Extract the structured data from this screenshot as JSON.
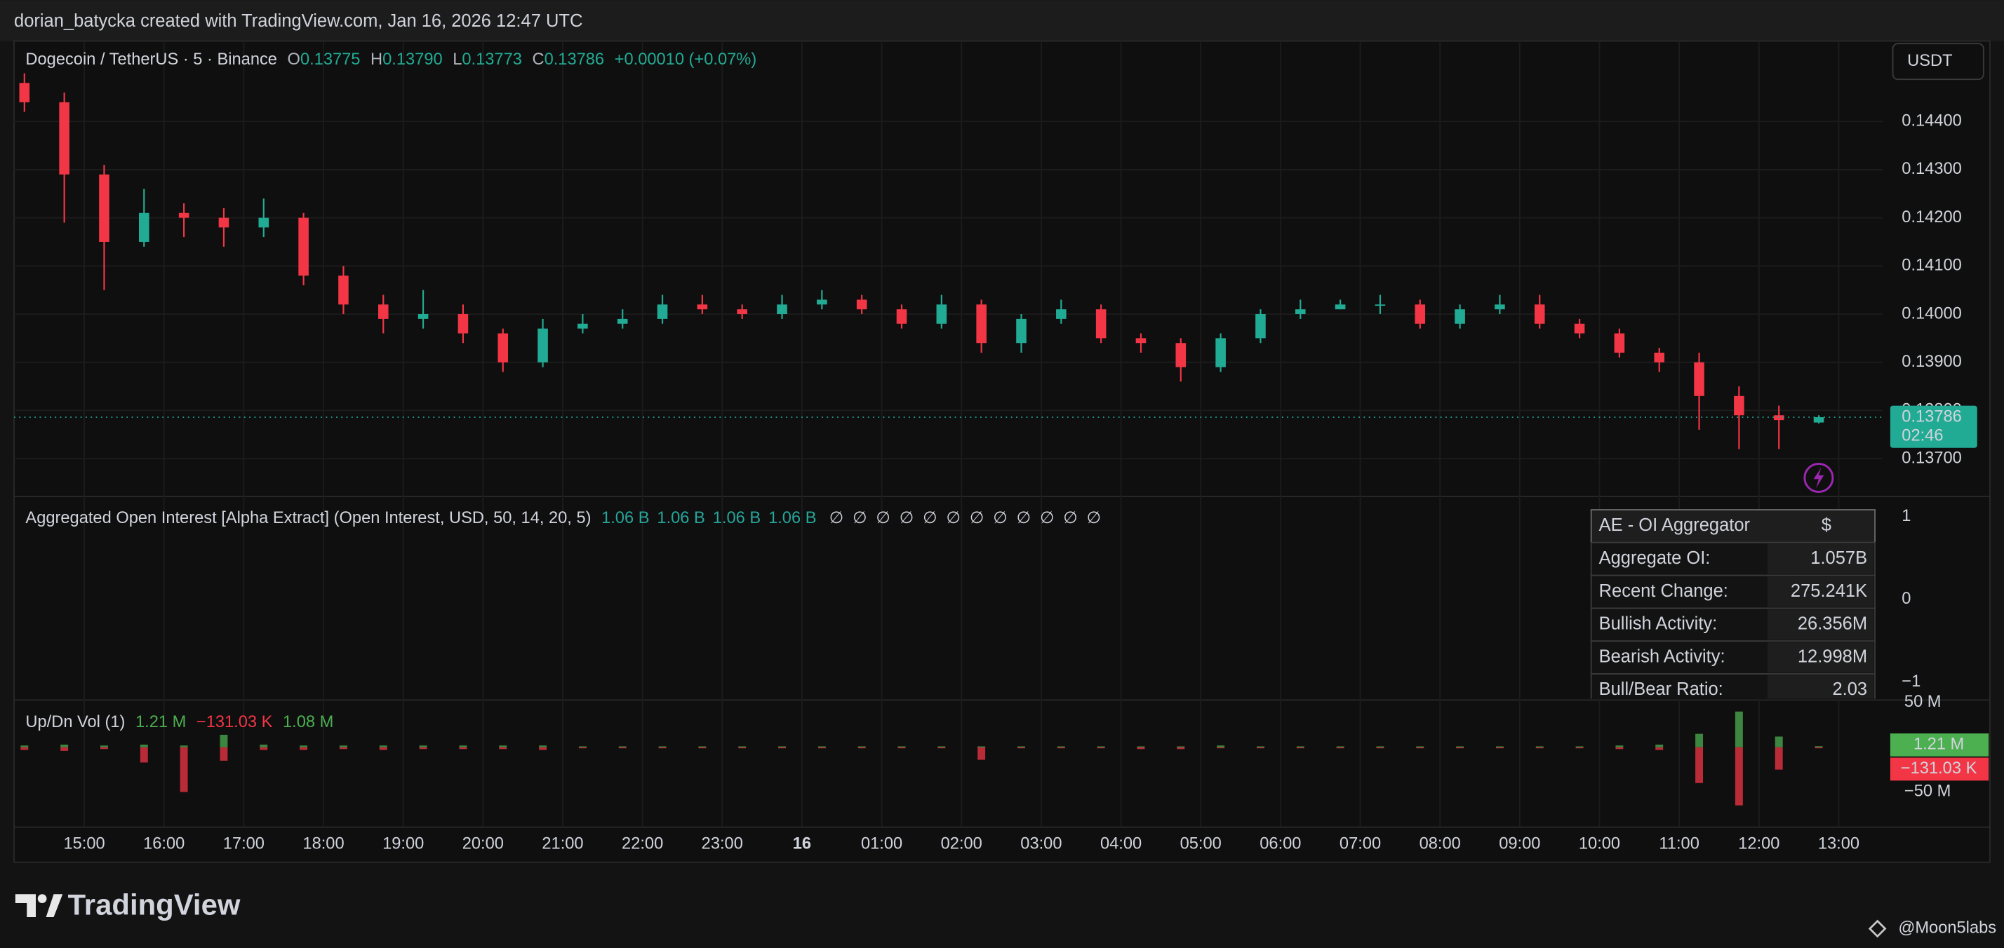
{
  "top_bar": {
    "text": "dorian_batycka created with TradingView.com, Jan 16, 2026 12:47 UTC"
  },
  "currency_button": "USDT",
  "chart_data": [
    {
      "type": "candlestick",
      "legend": {
        "symbol": "Dogecoin / TetherUS · 5 · Binance",
        "items": [
          {
            "key": "O",
            "value": "0.13775"
          },
          {
            "key": "H",
            "value": "0.13790"
          },
          {
            "key": "L",
            "value": "0.13773"
          },
          {
            "key": "C",
            "value": "0.13786"
          }
        ],
        "change": "+0.00010 (+0.07%)"
      },
      "up_color": "#22ab94",
      "down_color": "#f23645",
      "x": [
        14.25,
        14.75,
        15.25,
        15.75,
        16.25,
        16.75,
        17.25,
        17.75,
        18.25,
        18.75,
        19.25,
        19.75,
        20.25,
        20.75,
        21.25,
        21.75,
        22.25,
        22.75,
        23.25,
        23.75,
        24.25,
        24.75,
        25.25,
        25.75,
        26.25,
        26.75,
        27.25,
        27.75,
        28.25,
        28.75,
        29.25,
        29.75,
        30.25,
        30.75,
        31.25,
        31.75,
        32.25,
        32.75,
        33.25,
        33.75,
        34.25,
        34.75,
        35.25,
        35.75,
        36.25,
        36.75
      ],
      "open": [
        0.1448,
        0.1444,
        0.1429,
        0.1415,
        0.1421,
        0.142,
        0.1418,
        0.142,
        0.1408,
        0.1402,
        0.1399,
        0.14,
        0.1396,
        0.139,
        0.1397,
        0.1398,
        0.1399,
        0.1402,
        0.1401,
        0.14,
        0.1402,
        0.1403,
        0.1401,
        0.1398,
        0.1402,
        0.1394,
        0.1399,
        0.1401,
        0.1395,
        0.1394,
        0.1389,
        0.1395,
        0.14,
        0.1401,
        0.1402,
        0.1402,
        0.1398,
        0.1401,
        0.1402,
        0.1398,
        0.1396,
        0.1392,
        0.139,
        0.1383,
        0.1379,
        0.13775
      ],
      "high": [
        0.145,
        0.1446,
        0.1431,
        0.1426,
        0.1423,
        0.1422,
        0.1424,
        0.1421,
        0.141,
        0.1404,
        0.1405,
        0.1402,
        0.1397,
        0.1399,
        0.14,
        0.1401,
        0.1404,
        0.1404,
        0.1402,
        0.1404,
        0.1405,
        0.1404,
        0.1402,
        0.1404,
        0.1403,
        0.14,
        0.1403,
        0.1402,
        0.1396,
        0.1395,
        0.1396,
        0.1401,
        0.1403,
        0.1403,
        0.1404,
        0.1403,
        0.1402,
        0.1404,
        0.1404,
        0.1399,
        0.1397,
        0.1393,
        0.1392,
        0.1385,
        0.1381,
        0.1379
      ],
      "low": [
        0.1442,
        0.1419,
        0.1405,
        0.1414,
        0.1416,
        0.1414,
        0.1416,
        0.1406,
        0.14,
        0.1396,
        0.1397,
        0.1394,
        0.1388,
        0.1389,
        0.1396,
        0.1397,
        0.1398,
        0.14,
        0.1399,
        0.1399,
        0.1401,
        0.14,
        0.1397,
        0.1397,
        0.1392,
        0.1392,
        0.1398,
        0.1394,
        0.1392,
        0.1386,
        0.1388,
        0.1394,
        0.1399,
        0.1401,
        0.14,
        0.1397,
        0.1397,
        0.14,
        0.1397,
        0.1395,
        0.1391,
        0.1388,
        0.1376,
        0.1372,
        0.1372,
        0.13773
      ],
      "close": [
        0.1444,
        0.1429,
        0.1415,
        0.1421,
        0.142,
        0.1418,
        0.142,
        0.1408,
        0.1402,
        0.1399,
        0.14,
        0.1396,
        0.139,
        0.1397,
        0.1398,
        0.1399,
        0.1402,
        0.1401,
        0.14,
        0.1402,
        0.1403,
        0.1401,
        0.1398,
        0.1402,
        0.1394,
        0.1399,
        0.1401,
        0.1395,
        0.1394,
        0.1389,
        0.1395,
        0.14,
        0.1401,
        0.1402,
        0.1402,
        0.1398,
        0.1401,
        0.1402,
        0.1398,
        0.1396,
        0.1392,
        0.139,
        0.1383,
        0.1379,
        0.1378,
        0.13786
      ],
      "countdown": "02:46",
      "xlim": [
        14.12,
        37.55
      ],
      "xticks": [
        {
          "value": 15,
          "label": "15:00"
        },
        {
          "value": 16,
          "label": "16:00"
        },
        {
          "value": 17,
          "label": "17:00"
        },
        {
          "value": 18,
          "label": "18:00"
        },
        {
          "value": 19,
          "label": "19:00"
        },
        {
          "value": 20,
          "label": "20:00"
        },
        {
          "value": 21,
          "label": "21:00"
        },
        {
          "value": 22,
          "label": "22:00"
        },
        {
          "value": 23,
          "label": "23:00"
        },
        {
          "value": 24,
          "label": "16",
          "bold": true
        },
        {
          "value": 25,
          "label": "01:00"
        },
        {
          "value": 26,
          "label": "02:00"
        },
        {
          "value": 27,
          "label": "03:00"
        },
        {
          "value": 28,
          "label": "04:00"
        },
        {
          "value": 29,
          "label": "05:00"
        },
        {
          "value": 30,
          "label": "06:00"
        },
        {
          "value": 31,
          "label": "07:00"
        },
        {
          "value": 32,
          "label": "08:00"
        },
        {
          "value": 33,
          "label": "09:00"
        },
        {
          "value": 34,
          "label": "10:00"
        },
        {
          "value": 35,
          "label": "11:00"
        },
        {
          "value": 36,
          "label": "12:00"
        },
        {
          "value": 37,
          "label": "13:00"
        }
      ],
      "ylim": [
        0.13623,
        0.14567
      ],
      "yticks": [
        {
          "value": 0.137,
          "label": "0.13700"
        },
        {
          "value": 0.138,
          "label": "0.13800"
        },
        {
          "value": 0.139,
          "label": "0.13900"
        },
        {
          "value": 0.14,
          "label": "0.14000"
        },
        {
          "value": 0.141,
          "label": "0.14100"
        },
        {
          "value": 0.142,
          "label": "0.14200"
        },
        {
          "value": 0.143,
          "label": "0.14300"
        },
        {
          "value": 0.144,
          "label": "0.14400"
        }
      ],
      "grid": true
    },
    {
      "type": "indicator",
      "title": "Aggregated Open Interest [Alpha Extract] (Open Interest, USD, 50, 14, 20, 5)",
      "legend_values": [
        "1.06 B",
        "1.06 B",
        "1.06 B",
        "1.06 B"
      ],
      "legend_empty": [
        "∅",
        "∅",
        "∅",
        "∅",
        "∅",
        "∅",
        "∅",
        "∅",
        "∅",
        "∅",
        "∅",
        "∅"
      ],
      "value_color": "#26a69a",
      "ylim": [
        -1.2,
        1.22
      ],
      "yticks": [
        1,
        0,
        {
          "value": -1,
          "label": "−1"
        }
      ],
      "table": {
        "title": "AE - OI Aggregator",
        "currency": "$",
        "rows": [
          {
            "label": "Aggregate OI:",
            "value": "1.057B",
            "color": "#26a69a"
          },
          {
            "label": "Recent Change:",
            "value": "275.241K",
            "color": "#26a69a"
          },
          {
            "label": "Bullish Activity:",
            "value": "26.356M",
            "color": "#26a69a"
          },
          {
            "label": "Bearish Activity:",
            "value": "12.998M",
            "color": "#f23645"
          },
          {
            "label": "Bull/Bear Ratio:",
            "value": "2.03",
            "color": "#26a69a"
          }
        ]
      }
    },
    {
      "type": "updown_bar",
      "title": "Up/Dn Vol (1)",
      "series": [
        {
          "name": "Up",
          "color": "#4caf50",
          "last_label": "1.21 M",
          "values": [
            2,
            3,
            2,
            3,
            2,
            14,
            3,
            2,
            2,
            2,
            2,
            2,
            2,
            2,
            1,
            1,
            1,
            1,
            1,
            1,
            1,
            1,
            1,
            1,
            1,
            1,
            1,
            1,
            1,
            1,
            2,
            1,
            1,
            1,
            1,
            1,
            1,
            1,
            1,
            1,
            2,
            3,
            15,
            40,
            12,
            1.21
          ]
        },
        {
          "name": "Down",
          "color": "#f23645",
          "last_label": "−131.03 K",
          "values": [
            -3,
            -4,
            -2,
            -17,
            -50,
            -15,
            -3,
            -3,
            -2,
            -3,
            -2,
            -2,
            -2,
            -3,
            -1,
            -1,
            -1,
            -1,
            -1,
            -1,
            -1,
            -1,
            -1,
            -1,
            -14,
            -1,
            -1,
            -1,
            -2,
            -2,
            -1,
            -1,
            -1,
            -1,
            -1,
            -1,
            -1,
            -1,
            -1,
            -1,
            -2,
            -3,
            -40,
            -65,
            -25,
            -0.13103
          ]
        }
      ],
      "delta": {
        "value": 1.08,
        "label": "1.08 M",
        "color": "#4caf50"
      },
      "ylim": [
        -88.6,
        51.4
      ],
      "yticks": [
        {
          "value": 50,
          "label": "50 M"
        },
        {
          "value": -50,
          "label": "−50 M"
        }
      ]
    }
  ],
  "footer": {
    "brand": "TradingView",
    "credit": "@Moon5labs"
  }
}
